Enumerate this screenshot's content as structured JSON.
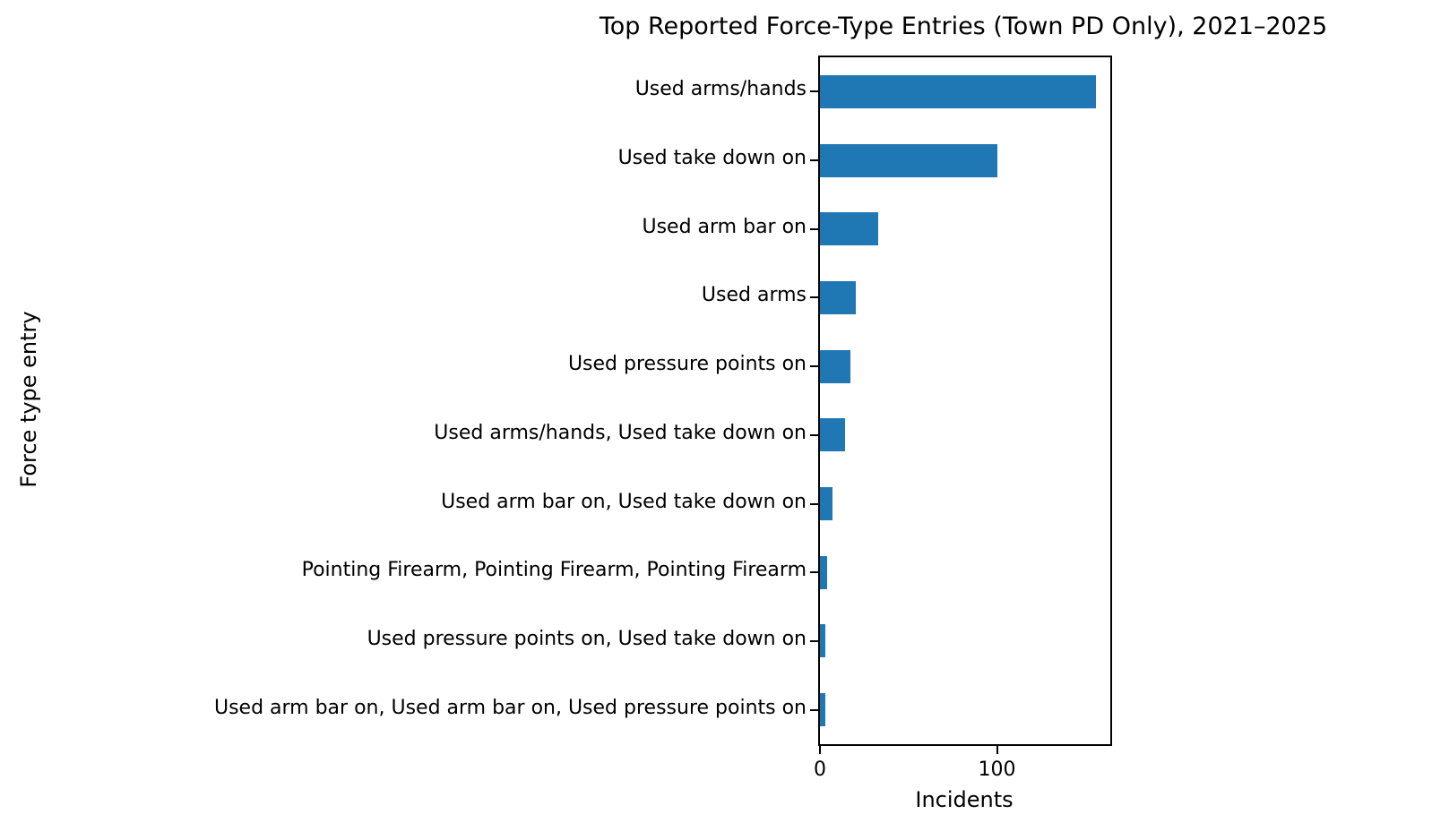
{
  "chart_data": {
    "type": "bar",
    "orientation": "horizontal",
    "title": "Top Reported Force-Type Entries (Town PD Only), 2021–2025",
    "xlabel": "Incidents",
    "ylabel": "Force type entry",
    "categories": [
      "Used arms/hands",
      "Used take down on",
      "Used arm bar on",
      "Used arms",
      "Used pressure points on",
      "Used arms/hands, Used take down on",
      "Used arm bar on, Used take down on",
      "Pointing Firearm, Pointing Firearm, Pointing Firearm",
      "Used pressure points on, Used take down on",
      "Used arm bar on, Used arm bar on, Used pressure points on"
    ],
    "values": [
      156,
      100,
      33,
      20,
      17,
      14,
      7,
      4,
      3,
      3
    ],
    "xlim": [
      0,
      164
    ],
    "xticks": [
      0,
      100
    ],
    "bar_color": "#1f77b4",
    "axis_color": "#000000",
    "background_color": "#ffffff",
    "grid": false,
    "legend": false
  }
}
